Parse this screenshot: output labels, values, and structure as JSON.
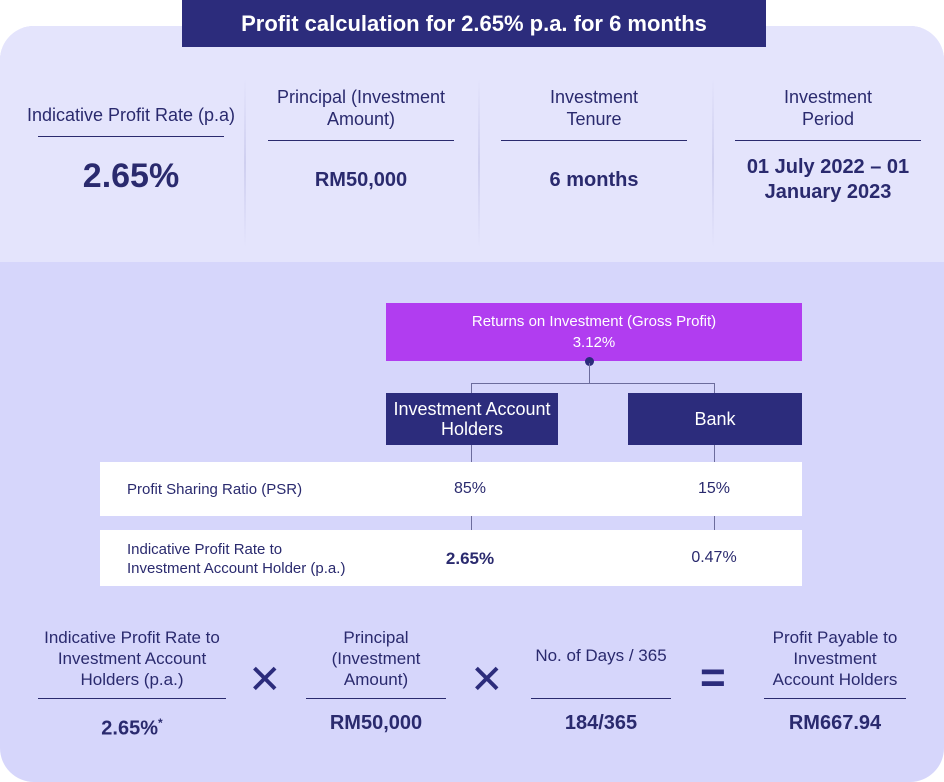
{
  "title": "Profit calculation for 2.65% p.a. for 6 months",
  "summary": [
    {
      "label": "Indicative Profit Rate (p.a)",
      "value": "2.65%"
    },
    {
      "label": "Principal (Investment Amount)",
      "value": "RM50,000"
    },
    {
      "label": "Investment Tenure",
      "value": "6 months"
    },
    {
      "label": "Investment Period",
      "value": "01 July 2022 – 01 January 2023"
    }
  ],
  "gross": {
    "label": "Returns on Investment (Gross Profit)",
    "value": "3.12%"
  },
  "parties": {
    "holders": "Investment Account Holders",
    "bank": "Bank"
  },
  "rows": [
    {
      "label": "Profit Sharing Ratio (PSR)",
      "holders": "85%",
      "bank": "15%"
    },
    {
      "label": "Indicative Profit Rate to Investment Account Holder (p.a.)",
      "holders": "2.65%",
      "bank": "0.47%"
    }
  ],
  "formula": {
    "rate": {
      "label": "Indicative Profit Rate to Investment Account Holders (p.a.)",
      "value": "2.65%",
      "footnote": "*"
    },
    "principal": {
      "label": "Principal (Investment Amount)",
      "value": "RM50,000"
    },
    "days": {
      "label": "No. of Days / 365",
      "value": "184/365"
    },
    "result": {
      "label": "Profit Payable to Investment Account Holders",
      "value": "RM667.94"
    },
    "times_symbol": "✕",
    "equals_symbol": "="
  },
  "colors": {
    "navy": "#2c2c7c",
    "purple": "#b13df0",
    "panel": "#d6d6fb",
    "band": "#e4e4fc"
  }
}
